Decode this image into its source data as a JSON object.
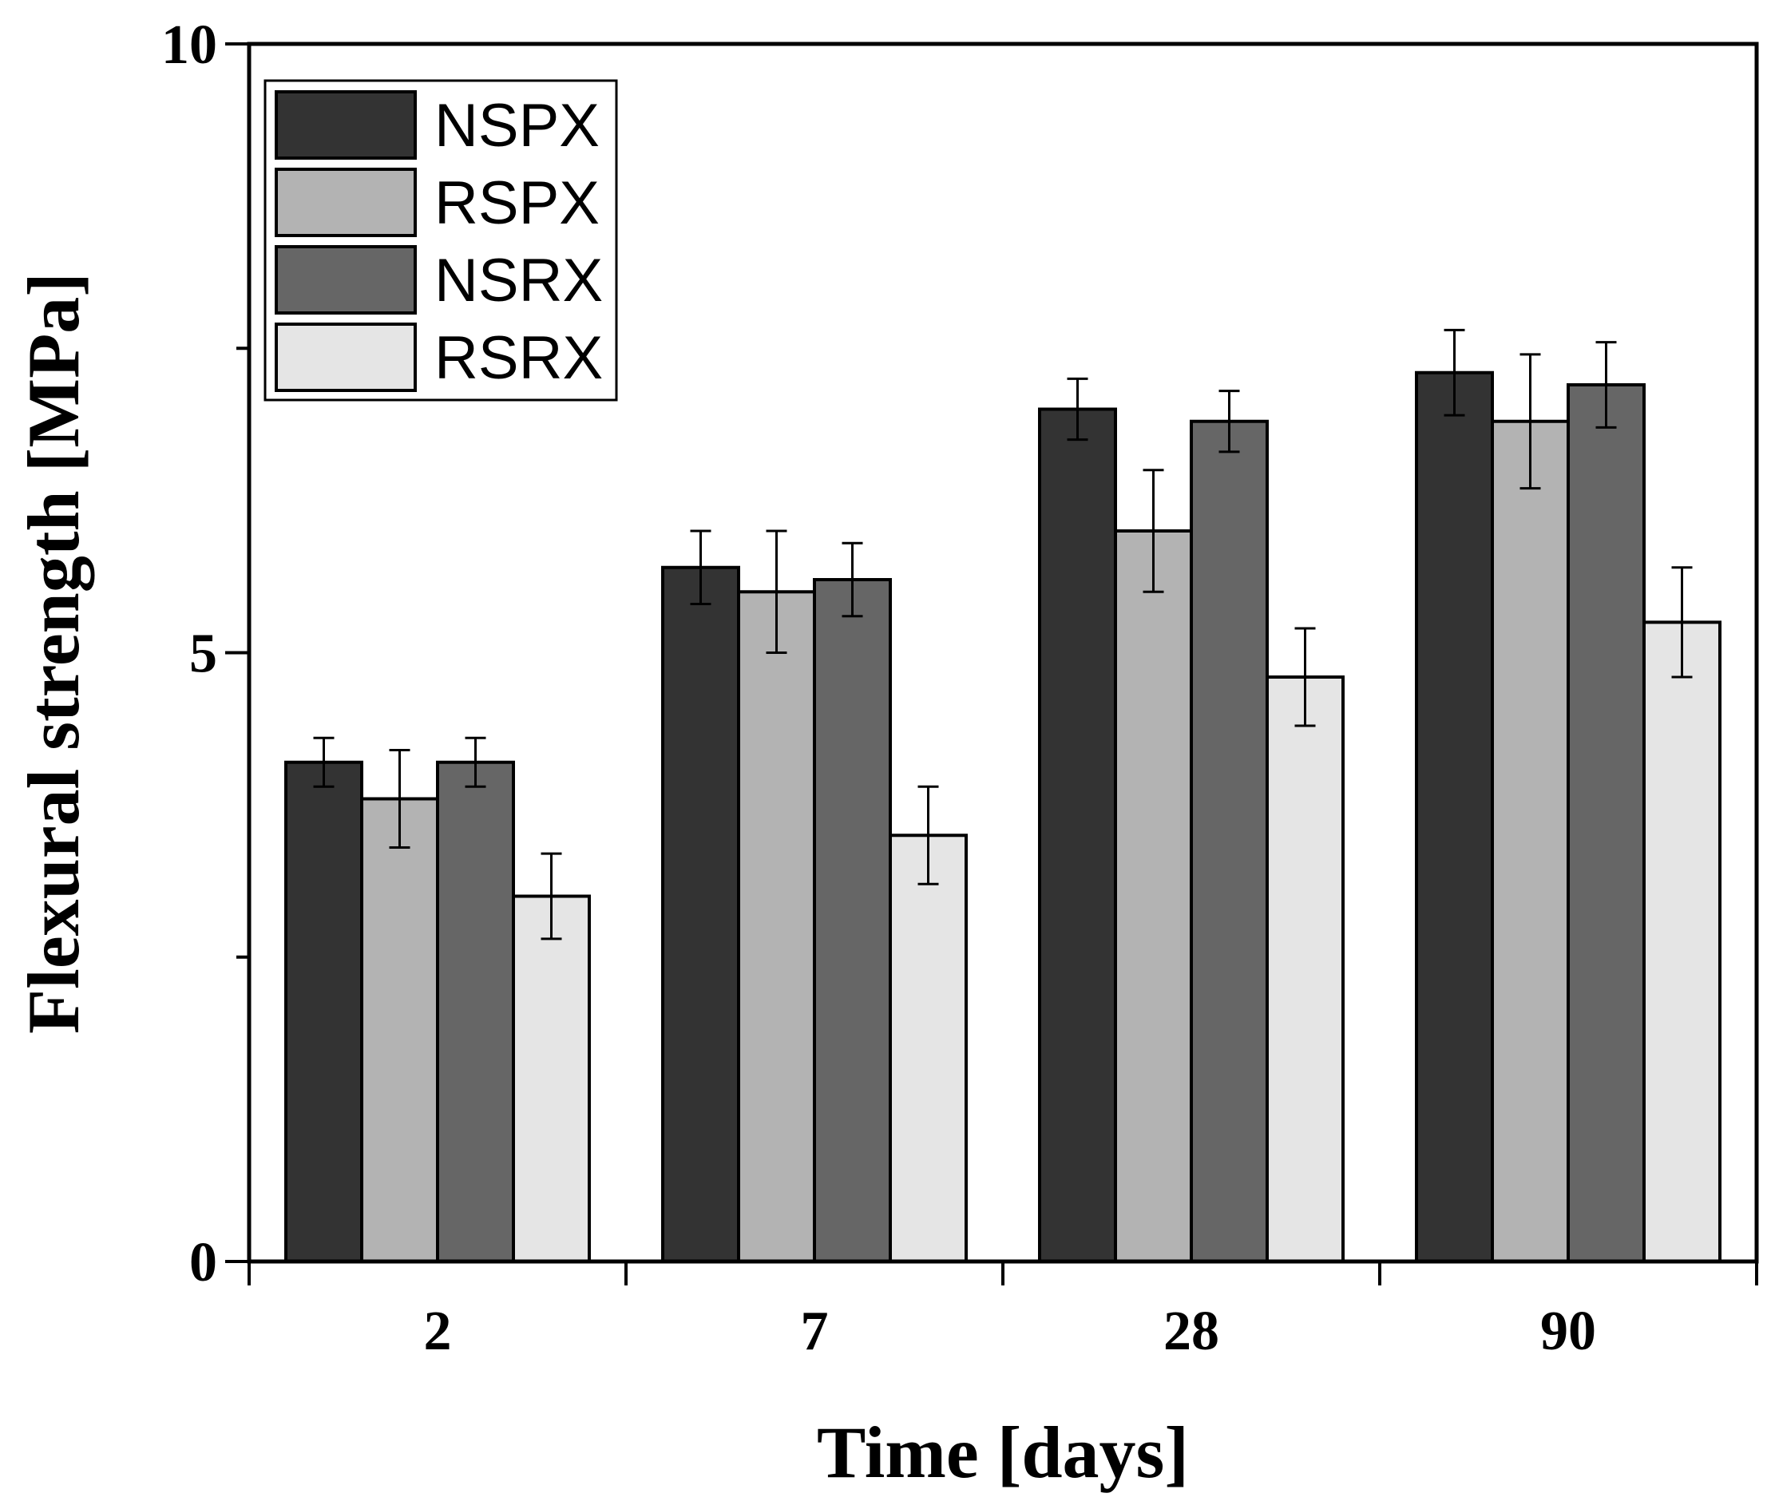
{
  "chart_data": {
    "type": "bar",
    "title": "",
    "xlabel": "Time [days]",
    "ylabel": "Flexural strength [MPa]",
    "categories": [
      "2",
      "7",
      "28",
      "90"
    ],
    "ylim": [
      0,
      10
    ],
    "yticks": [
      0,
      5,
      10
    ],
    "ytick_labels": [
      "0",
      "5",
      "10"
    ],
    "legend_position": "top-left",
    "series": [
      {
        "name": "NSPX",
        "color": "#333333",
        "values": [
          4.1,
          5.7,
          7.0,
          7.3
        ],
        "errors": [
          0.2,
          0.3,
          0.25,
          0.35
        ]
      },
      {
        "name": "RSPX",
        "color": "#b3b3b3",
        "values": [
          3.8,
          5.5,
          6.0,
          6.9
        ],
        "errors": [
          0.4,
          0.5,
          0.5,
          0.55
        ]
      },
      {
        "name": "NSRX",
        "color": "#666666",
        "values": [
          4.1,
          5.6,
          6.9,
          7.2
        ],
        "errors": [
          0.2,
          0.3,
          0.25,
          0.35
        ]
      },
      {
        "name": "RSRX",
        "color": "#e5e5e5",
        "values": [
          3.0,
          3.5,
          4.8,
          5.25
        ],
        "errors": [
          0.35,
          0.4,
          0.4,
          0.45
        ]
      }
    ]
  }
}
